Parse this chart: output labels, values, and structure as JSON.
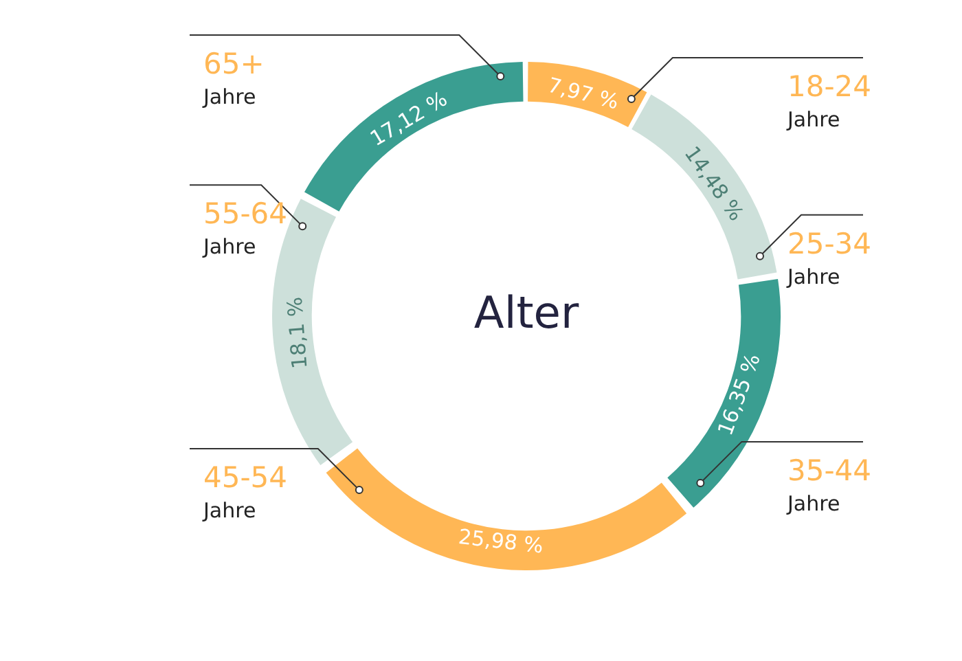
{
  "chart_data": {
    "type": "donut",
    "title": "Alter",
    "categories": [
      "18-24 Jahre",
      "25-34 Jahre",
      "35-44 Jahre",
      "45-54 Jahre",
      "55-64 Jahre",
      "65+ Jahre"
    ],
    "values": [
      7.97,
      14.48,
      16.35,
      25.98,
      18.1,
      17.12
    ],
    "value_labels": [
      "7,97 %",
      "14,48 %",
      "16,35 %",
      "25,98 %",
      "18,1 %",
      "17,12 %"
    ],
    "colors": [
      "#ffb755",
      "#cde0da",
      "#3a9e91",
      "#ffb755",
      "#cde0da",
      "#3a9e91"
    ],
    "legend": false
  }
}
